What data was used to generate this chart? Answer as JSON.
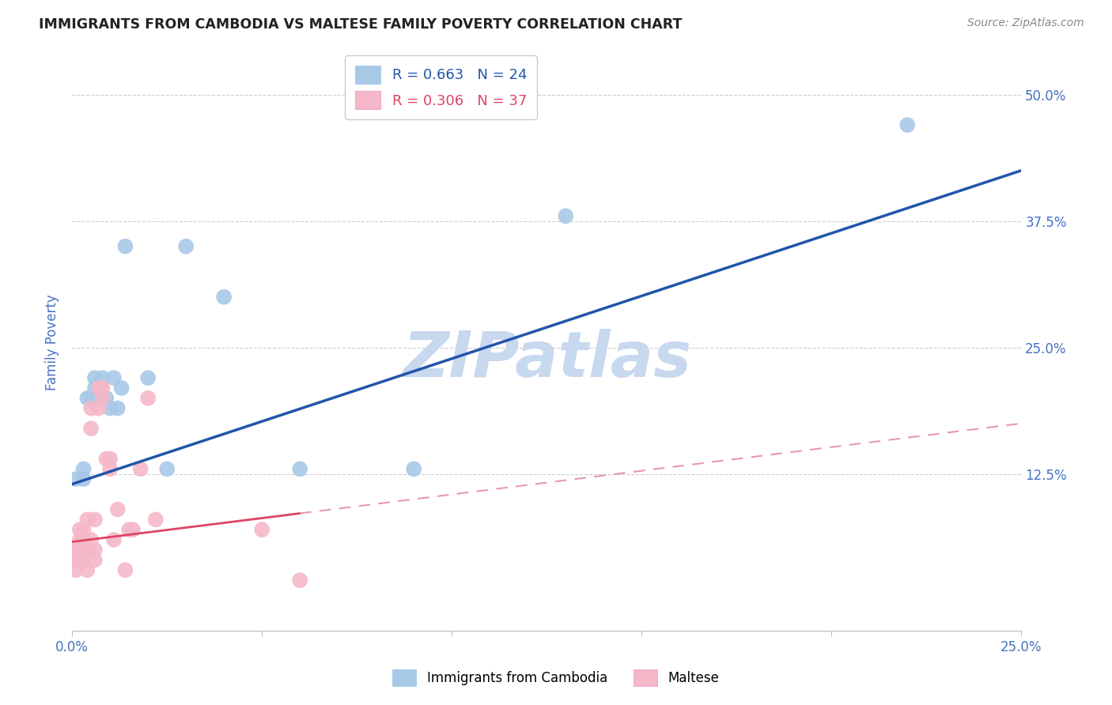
{
  "title": "IMMIGRANTS FROM CAMBODIA VS MALTESE FAMILY POVERTY CORRELATION CHART",
  "source": "Source: ZipAtlas.com",
  "ylabel": "Family Poverty",
  "xlim": [
    0,
    0.25
  ],
  "ylim": [
    -0.03,
    0.54
  ],
  "legend_r1": "R = 0.663   N = 24",
  "legend_r2": "R = 0.306   N = 37",
  "legend_label1": "Immigrants from Cambodia",
  "legend_label2": "Maltese",
  "color_blue": "#a8c8e8",
  "color_pink": "#f4b8c8",
  "color_blue_line": "#2255aa",
  "color_pink_line": "#dd4466",
  "color_pink_dashed": "#e899aa",
  "watermark_color": "#c8d8ee",
  "background_color": "#ffffff",
  "title_color": "#222222",
  "axis_label_color": "#4472c4",
  "blue_line_x0": 0.0,
  "blue_line_y0": 0.115,
  "blue_line_x1": 0.25,
  "blue_line_y1": 0.425,
  "pink_line_x0": 0.0,
  "pink_line_y0": 0.058,
  "pink_line_x1": 0.25,
  "pink_line_y1": 0.175,
  "pink_solid_xend": 0.06,
  "cambodia_x": [
    0.001,
    0.003,
    0.003,
    0.004,
    0.005,
    0.006,
    0.006,
    0.007,
    0.007,
    0.008,
    0.009,
    0.01,
    0.011,
    0.012,
    0.013,
    0.014,
    0.02,
    0.025,
    0.03,
    0.04,
    0.06,
    0.09,
    0.13,
    0.22
  ],
  "cambodia_y": [
    0.12,
    0.13,
    0.12,
    0.2,
    0.2,
    0.21,
    0.22,
    0.2,
    0.21,
    0.22,
    0.2,
    0.19,
    0.22,
    0.19,
    0.21,
    0.35,
    0.22,
    0.13,
    0.35,
    0.3,
    0.13,
    0.13,
    0.38,
    0.47
  ],
  "maltese_x": [
    0.001,
    0.001,
    0.001,
    0.002,
    0.002,
    0.002,
    0.002,
    0.003,
    0.003,
    0.003,
    0.003,
    0.004,
    0.004,
    0.004,
    0.005,
    0.005,
    0.005,
    0.006,
    0.006,
    0.006,
    0.007,
    0.007,
    0.008,
    0.008,
    0.009,
    0.01,
    0.01,
    0.011,
    0.012,
    0.014,
    0.015,
    0.016,
    0.018,
    0.02,
    0.022,
    0.05,
    0.06
  ],
  "maltese_y": [
    0.05,
    0.04,
    0.03,
    0.07,
    0.06,
    0.05,
    0.04,
    0.07,
    0.06,
    0.05,
    0.04,
    0.08,
    0.05,
    0.03,
    0.19,
    0.17,
    0.06,
    0.08,
    0.05,
    0.04,
    0.19,
    0.21,
    0.2,
    0.21,
    0.14,
    0.14,
    0.13,
    0.06,
    0.09,
    0.03,
    0.07,
    0.07,
    0.13,
    0.2,
    0.08,
    0.07,
    0.02
  ]
}
